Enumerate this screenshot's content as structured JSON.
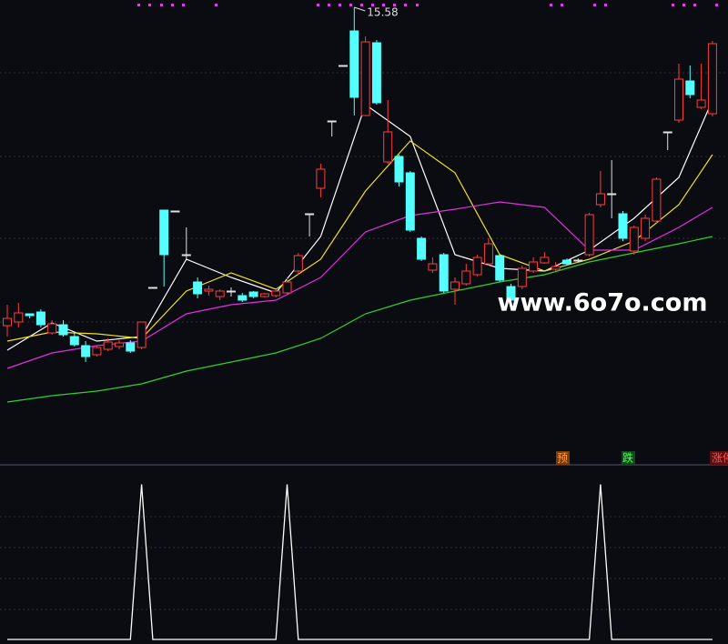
{
  "chart_data": [
    {
      "type": "candlestick",
      "annotation": "15.58",
      "watermark": "www.6o7o.com",
      "signals": [
        "预",
        "跌",
        "涨停"
      ],
      "up_color": "#ff3c3c",
      "down_color": "#54ffff",
      "flat_color": "#e0e0e0",
      "ylim": [
        5.54,
        15.74
      ],
      "categories": [
        null,
        null,
        null,
        null,
        null,
        null,
        null,
        null,
        null,
        null,
        null,
        null,
        null,
        null,
        null,
        null,
        null,
        null,
        null,
        null,
        null,
        null,
        null,
        null,
        null,
        null,
        null,
        null,
        null,
        null,
        null,
        null,
        null,
        null,
        null,
        null,
        null,
        null,
        null,
        null,
        null,
        null,
        null,
        null,
        null,
        null,
        null,
        null,
        null,
        null,
        null,
        null,
        null,
        null,
        null,
        null,
        null,
        null,
        null,
        null,
        null,
        null,
        null,
        null
      ],
      "open": [
        8.58,
        8.66,
        8.84,
        8.88,
        8.42,
        8.6,
        8.34,
        8.14,
        7.94,
        8.06,
        8.12,
        8.2,
        8.1,
        9.42,
        11.12,
        11.1,
        10.14,
        9.54,
        9.34,
        9.22,
        9.34,
        9.24,
        9.32,
        9.22,
        9.24,
        9.3,
        9.78,
        11.04,
        11.6,
        13.08,
        14.3,
        15.06,
        13.2,
        14.8,
        12.18,
        12.3,
        11.94,
        10.5,
        9.8,
        10.14,
        9.38,
        9.5,
        9.7,
        9.94,
        10.12,
        9.44,
        9.44,
        9.78,
        9.96,
        9.82,
        10.02,
        10.02,
        10.14,
        11.24,
        11.48,
        11.04,
        10.22,
        10.5,
        10.88,
        12.84,
        13.1,
        13.96,
        13.38,
        13.24
      ],
      "close": [
        8.74,
        8.86,
        8.8,
        8.6,
        8.62,
        8.38,
        8.16,
        7.9,
        8.1,
        8.22,
        8.2,
        8.02,
        8.66,
        9.42,
        10.14,
        11.1,
        10.14,
        9.28,
        9.38,
        9.34,
        9.34,
        9.14,
        9.22,
        9.28,
        9.34,
        9.54,
        10.12,
        11.04,
        12.02,
        13.08,
        14.3,
        13.6,
        14.82,
        13.48,
        12.84,
        11.74,
        10.68,
        10.04,
        9.94,
        9.34,
        9.54,
        9.78,
        10.08,
        10.38,
        9.58,
        9.14,
        9.84,
        9.98,
        10.08,
        9.88,
        9.94,
        10.02,
        11.02,
        11.48,
        11.48,
        10.5,
        10.74,
        10.94,
        11.8,
        12.84,
        14.0,
        13.66,
        13.54,
        14.78
      ],
      "high": [
        9.04,
        9.08,
        8.84,
        8.94,
        8.7,
        8.7,
        8.42,
        8.24,
        8.14,
        8.3,
        8.26,
        8.26,
        8.66,
        9.42,
        11.12,
        11.1,
        10.74,
        9.64,
        9.46,
        9.38,
        9.42,
        9.3,
        9.34,
        9.3,
        9.38,
        9.64,
        10.18,
        11.04,
        12.14,
        13.08,
        14.3,
        15.58,
        14.94,
        14.86,
        13.54,
        12.34,
        11.98,
        10.54,
        10.08,
        10.18,
        9.64,
        9.94,
        10.14,
        10.5,
        10.16,
        9.5,
        9.9,
        10.08,
        10.2,
        9.98,
        10.06,
        10.06,
        11.06,
        11.98,
        12.22,
        11.1,
        10.78,
        11.02,
        11.84,
        12.84,
        14.34,
        14.3,
        14.34,
        14.84
      ],
      "low": [
        8.34,
        8.54,
        8.74,
        8.54,
        8.38,
        8.34,
        8.12,
        7.78,
        7.9,
        8.02,
        8.06,
        7.98,
        8.06,
        9.42,
        9.44,
        11.1,
        10.04,
        9.18,
        9.24,
        9.14,
        9.22,
        9.1,
        9.18,
        9.2,
        9.2,
        9.26,
        9.7,
        10.54,
        11.4,
        12.74,
        14.3,
        13.2,
        13.2,
        13.44,
        12.14,
        11.64,
        10.64,
        10.0,
        9.74,
        9.3,
        9.04,
        9.46,
        9.66,
        9.9,
        9.54,
        8.98,
        9.38,
        9.74,
        9.94,
        9.78,
        9.9,
        9.98,
        10.1,
        11.18,
        10.94,
        10.44,
        10.14,
        10.44,
        10.84,
        12.44,
        13.04,
        13.58,
        13.34,
        13.18
      ],
      "lines": [
        {
          "color": "#ffffff",
          "x": [
            0,
            4,
            8,
            12,
            16,
            20,
            24,
            28,
            32,
            36,
            40,
            44,
            48,
            52,
            56,
            60,
            63
          ],
          "values": [
            8.04,
            8.64,
            8.24,
            8.34,
            10.04,
            9.64,
            9.3,
            10.54,
            13.44,
            12.74,
            10.14,
            9.84,
            9.78,
            10.24,
            10.94,
            11.84,
            13.54
          ]
        },
        {
          "color": "#f0e020",
          "x": [
            0,
            4,
            8,
            12,
            16,
            20,
            24,
            28,
            32,
            36,
            40,
            44,
            48,
            52,
            56,
            60,
            63
          ],
          "values": [
            8.24,
            8.44,
            8.4,
            8.3,
            9.34,
            9.74,
            9.38,
            10.04,
            11.54,
            12.64,
            11.94,
            10.14,
            9.78,
            10.04,
            10.44,
            11.24,
            12.34
          ]
        },
        {
          "color": "#e030e0",
          "x": [
            0,
            4,
            8,
            12,
            16,
            20,
            24,
            28,
            32,
            36,
            40,
            44,
            48,
            52,
            56,
            60,
            63
          ],
          "values": [
            7.64,
            7.98,
            8.14,
            8.24,
            8.84,
            9.04,
            9.14,
            9.64,
            10.64,
            11.0,
            11.14,
            11.3,
            11.18,
            10.24,
            10.24,
            10.74,
            11.18
          ]
        },
        {
          "color": "#30d030",
          "x": [
            0,
            4,
            8,
            12,
            16,
            20,
            24,
            28,
            32,
            36,
            40,
            44,
            48,
            52,
            56,
            60,
            63
          ],
          "values": [
            6.9,
            7.04,
            7.14,
            7.3,
            7.58,
            7.78,
            7.98,
            8.3,
            8.84,
            9.14,
            9.34,
            9.54,
            9.7,
            9.98,
            10.18,
            10.38,
            10.54
          ]
        }
      ]
    },
    {
      "type": "line",
      "color": "#ffffff",
      "ylim": [
        0,
        1.12
      ],
      "values": [
        0,
        0,
        0,
        0,
        0,
        0,
        0,
        0,
        0,
        0,
        0,
        0,
        1,
        0,
        0,
        0,
        0,
        0,
        0,
        0,
        0,
        0,
        0,
        0,
        0,
        1,
        0,
        0,
        0,
        0,
        0,
        0,
        0,
        0,
        0,
        0,
        0,
        0,
        0,
        0,
        0,
        0,
        0,
        0,
        0,
        0,
        0,
        0,
        0,
        0,
        0,
        0,
        0,
        1,
        0,
        0,
        0,
        0,
        0,
        0,
        0,
        0,
        0,
        0
      ]
    }
  ]
}
